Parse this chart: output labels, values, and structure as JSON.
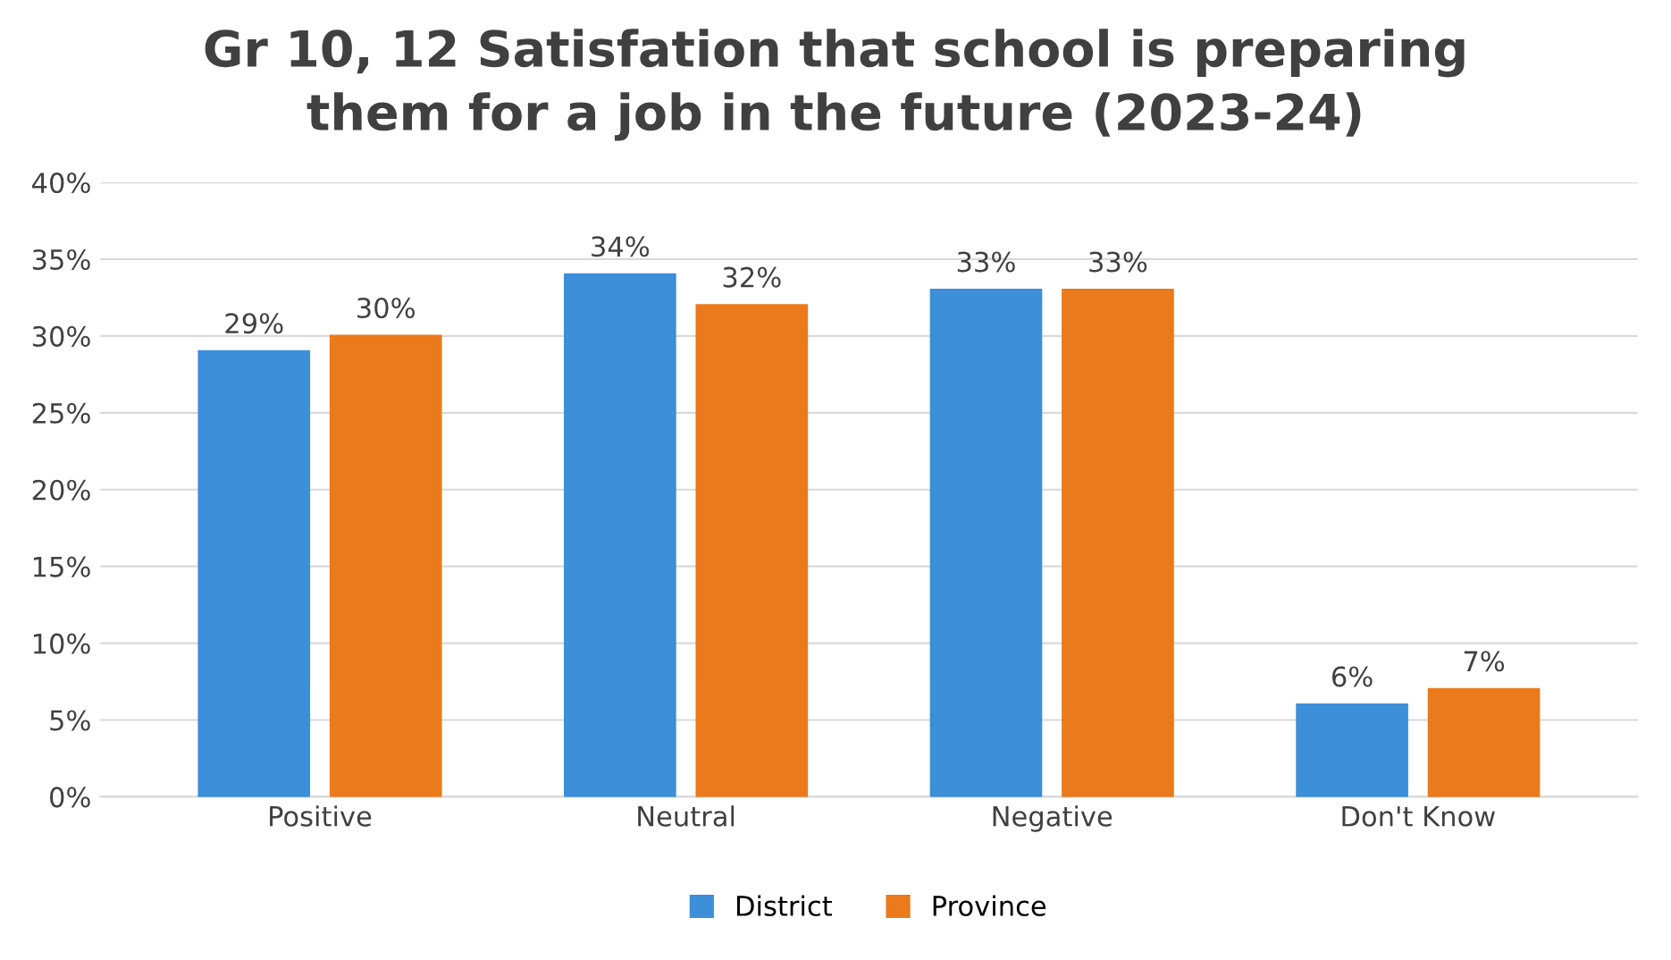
{
  "chart_data": {
    "type": "bar",
    "title": "Gr 10, 12 Satisfation that school is preparing\nthem for a job in the future (2023-24)",
    "categories": [
      "Positive",
      "Neutral",
      "Negative",
      "Don't Know"
    ],
    "series": [
      {
        "name": "District",
        "color": "#3c8fd8",
        "values": [
          29,
          34,
          33,
          6
        ],
        "value_labels": [
          "29%",
          "34%",
          "33%",
          "6%"
        ]
      },
      {
        "name": "Province",
        "color": "#ea7a1c",
        "values": [
          30,
          32,
          33,
          7
        ],
        "value_labels": [
          "30%",
          "32%",
          "33%",
          "7%"
        ]
      }
    ],
    "ylim": [
      0,
      40
    ],
    "yticks": [
      {
        "value": 0,
        "label": "0%"
      },
      {
        "value": 5,
        "label": "5%"
      },
      {
        "value": 10,
        "label": "10%"
      },
      {
        "value": 15,
        "label": "15%"
      },
      {
        "value": 20,
        "label": "20%"
      },
      {
        "value": 25,
        "label": "25%"
      },
      {
        "value": 30,
        "label": "30%"
      },
      {
        "value": 35,
        "label": "35%"
      },
      {
        "value": 40,
        "label": "40%"
      }
    ],
    "grid": "y",
    "legend": "bottom"
  }
}
